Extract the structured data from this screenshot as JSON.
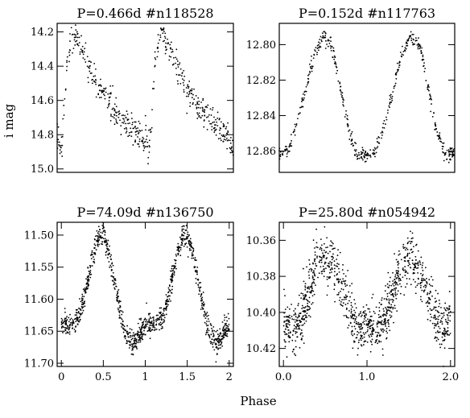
{
  "figure": {
    "ylabel": "i mag",
    "xlabel": "Phase",
    "colors": {
      "ink": "#000000",
      "background": "#ffffff"
    }
  },
  "chart_data": [
    {
      "type": "scatter",
      "title": "P=0.466d  #n118528",
      "period_days": 0.466,
      "star_id": "#n118528",
      "xlabel": "",
      "ylabel": "i mag",
      "xlim": [
        0,
        2
      ],
      "ylim": [
        14.15,
        15.02
      ],
      "y_inverted": true,
      "ytick_values": [
        14.2,
        14.4,
        14.6,
        14.8,
        15.0
      ],
      "ytick_labels": [
        "14.2",
        "14.4",
        "14.6",
        "14.8",
        "15.0"
      ],
      "xtick_values": [],
      "xtick_labels": [],
      "series": [
        {
          "phase": [
            0.0,
            0.03,
            0.06,
            0.1,
            0.14,
            0.18,
            0.2,
            0.23,
            0.28,
            0.35,
            0.45,
            0.55,
            0.65,
            0.75,
            0.85,
            0.92,
            0.97,
            1.0
          ],
          "mag": [
            14.78,
            14.88,
            14.84,
            14.45,
            14.3,
            14.2,
            14.2,
            14.25,
            14.3,
            14.4,
            14.5,
            14.6,
            14.66,
            14.72,
            14.76,
            14.8,
            14.85,
            14.88
          ],
          "scatter": 0.04,
          "n_points": 260
        }
      ]
    },
    {
      "type": "scatter",
      "title": "P=0.152d  #n117763",
      "period_days": 0.152,
      "star_id": "#n117763",
      "xlabel": "",
      "ylabel": "",
      "xlim": [
        0,
        2
      ],
      "ylim": [
        12.788,
        12.872
      ],
      "y_inverted": true,
      "ytick_values": [
        12.8,
        12.82,
        12.84,
        12.86
      ],
      "ytick_labels": [
        "12.80",
        "12.82",
        "12.84",
        "12.86"
      ],
      "xtick_values": [],
      "xtick_labels": [],
      "series": [
        {
          "phase": [
            0.0,
            0.1,
            0.2,
            0.3,
            0.4,
            0.5,
            0.6,
            0.7,
            0.8,
            0.9,
            1.0
          ],
          "mag": [
            12.862,
            12.86,
            12.845,
            12.825,
            12.805,
            12.795,
            12.8,
            12.825,
            12.85,
            12.862,
            12.862
          ],
          "scatter": 0.002,
          "n_points": 240
        }
      ]
    },
    {
      "type": "scatter",
      "title": "P=74.09d  #n136750",
      "period_days": 74.09,
      "star_id": "#n136750",
      "xlabel": "",
      "ylabel": "",
      "xlim": [
        -0.05,
        2.05
      ],
      "ylim": [
        11.48,
        11.705
      ],
      "y_inverted": true,
      "ytick_values": [
        11.5,
        11.55,
        11.6,
        11.65,
        11.7
      ],
      "ytick_labels": [
        "11.50",
        "11.55",
        "11.60",
        "11.65",
        "11.70"
      ],
      "xtick_values": [
        0,
        0.5,
        1,
        1.5,
        2
      ],
      "xtick_labels": [
        "0",
        "0.5",
        "1",
        "1.5",
        "2"
      ],
      "series": [
        {
          "phase": [
            0.0,
            0.1,
            0.2,
            0.3,
            0.4,
            0.45,
            0.5,
            0.55,
            0.6,
            0.7,
            0.75,
            0.8,
            0.85,
            0.95,
            1.0
          ],
          "mag": [
            11.64,
            11.64,
            11.63,
            11.58,
            11.52,
            11.5,
            11.5,
            11.52,
            11.55,
            11.62,
            11.65,
            11.66,
            11.67,
            11.65,
            11.64
          ],
          "scatter": 0.009,
          "n_points": 520
        }
      ]
    },
    {
      "type": "scatter",
      "title": "P=25.80d  #n054942",
      "period_days": 25.8,
      "star_id": "#n054942",
      "xlabel": "",
      "ylabel": "",
      "xlim": [
        -0.05,
        2.05
      ],
      "ylim": [
        10.35,
        10.43
      ],
      "y_inverted": true,
      "ytick_values": [
        10.36,
        10.38,
        10.4,
        10.42
      ],
      "ytick_labels": [
        "10.36",
        "10.38",
        "10.40",
        "10.42"
      ],
      "xtick_values": [
        0,
        1,
        2
      ],
      "xtick_labels": [
        "0.0",
        "1.0",
        "2.0"
      ],
      "series": [
        {
          "phase": [
            0.0,
            0.1,
            0.2,
            0.3,
            0.4,
            0.5,
            0.6,
            0.7,
            0.8,
            0.9,
            1.0
          ],
          "mag": [
            10.405,
            10.41,
            10.405,
            10.39,
            10.375,
            10.37,
            10.375,
            10.385,
            10.4,
            10.41,
            10.405
          ],
          "scatter": 0.007,
          "n_points": 560
        }
      ]
    }
  ]
}
